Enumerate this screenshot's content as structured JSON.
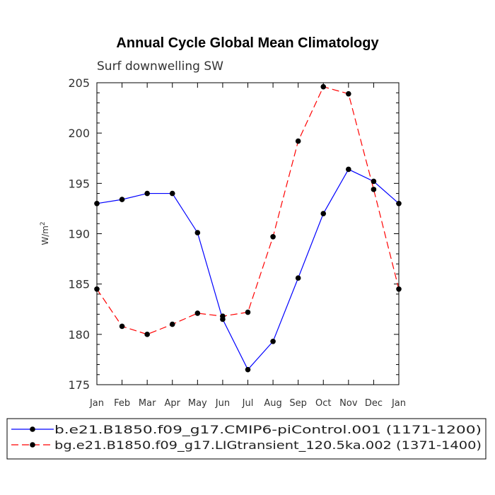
{
  "chart_data": {
    "type": "line",
    "title": "Annual Cycle Global Mean Climatology",
    "subtitle": "Surf downwelling SW",
    "ylabel_base": "W/m",
    "ylabel_sup": "2",
    "xlabel": "",
    "categories": [
      "Jan",
      "Feb",
      "Mar",
      "Apr",
      "May",
      "Jun",
      "Jul",
      "Aug",
      "Sep",
      "Oct",
      "Nov",
      "Dec",
      "Jan"
    ],
    "yticks": [
      "175",
      "180",
      "185",
      "190",
      "195",
      "200",
      "205"
    ],
    "ylim": [
      175,
      205
    ],
    "series": [
      {
        "name": "b.e21.B1850.f09_g17.CMIP6-piControl.001 (1171-1200)",
        "color": "#0000ff",
        "dash": "solid",
        "values": [
          193.0,
          193.4,
          194.0,
          194.0,
          190.1,
          181.5,
          176.5,
          179.3,
          185.6,
          192.0,
          196.4,
          195.2,
          193.0
        ]
      },
      {
        "name": "bg.e21.B1850.f09_g17.LIGtransient_120.5ka.002 (1371-1400)",
        "color": "#ff0000",
        "dash": "dashed",
        "values": [
          184.5,
          180.8,
          180.0,
          181.0,
          182.1,
          181.8,
          182.2,
          189.7,
          199.2,
          204.6,
          203.9,
          194.4,
          184.5
        ]
      }
    ]
  }
}
